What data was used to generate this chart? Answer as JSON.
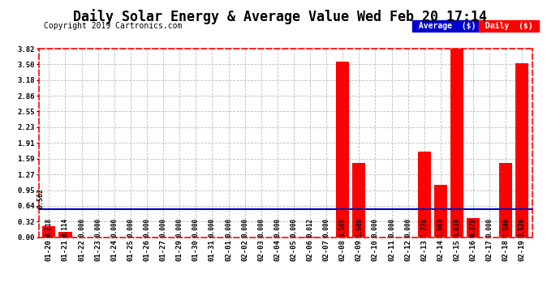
{
  "title": "Daily Solar Energy & Average Value Wed Feb 20 17:14",
  "copyright": "Copyright 2019 Cartronics.com",
  "categories": [
    "01-20",
    "01-21",
    "01-22",
    "01-23",
    "01-24",
    "01-25",
    "01-26",
    "01-27",
    "01-29",
    "01-30",
    "01-31",
    "02-01",
    "02-02",
    "02-03",
    "02-04",
    "02-05",
    "02-06",
    "02-07",
    "02-08",
    "02-09",
    "02-10",
    "02-11",
    "02-12",
    "02-13",
    "02-14",
    "02-15",
    "02-16",
    "02-17",
    "02-18",
    "02-19"
  ],
  "values": [
    0.218,
    0.114,
    0.0,
    0.0,
    0.0,
    0.0,
    0.0,
    0.0,
    0.0,
    0.0,
    0.0,
    0.0,
    0.0,
    0.0,
    0.0,
    0.0,
    0.012,
    0.0,
    3.565,
    1.508,
    0.0,
    0.0,
    0.0,
    1.728,
    1.063,
    3.819,
    0.378,
    0.0,
    1.5,
    3.526
  ],
  "average_line": 0.562,
  "bar_color": "#ff0000",
  "average_color": "#0000cc",
  "bg_color": "#ffffff",
  "grid_color": "#bbbbbb",
  "ylim": [
    0.0,
    3.82
  ],
  "yticks": [
    0.0,
    0.32,
    0.64,
    0.95,
    1.27,
    1.59,
    1.91,
    2.23,
    2.55,
    2.86,
    3.18,
    3.5,
    3.82
  ],
  "legend_avg_label": "Average  ($)",
  "legend_daily_label": "Daily  ($)",
  "legend_avg_bg": "#0000cc",
  "legend_daily_bg": "#ff0000",
  "legend_text_color": "#ffffff",
  "title_fontsize": 12,
  "copyright_fontsize": 7,
  "tick_fontsize": 6.5,
  "label_fontsize": 5.5
}
